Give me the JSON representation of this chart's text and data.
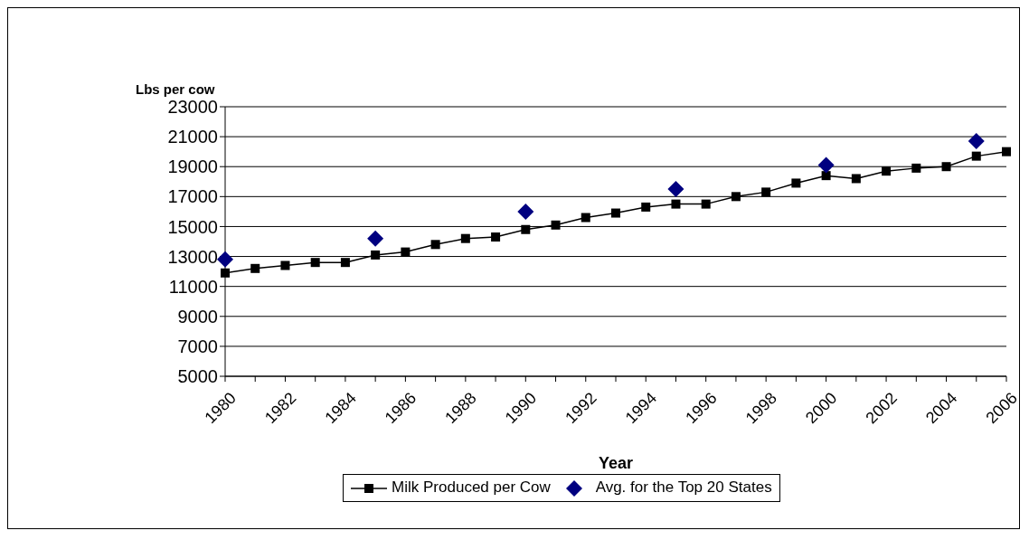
{
  "chart_data": {
    "type": "line",
    "xlabel": "Year",
    "ylabel": "Lbs per cow",
    "categories": [
      "1980",
      null,
      "1982",
      null,
      "1984",
      null,
      "1986",
      null,
      "1988",
      null,
      "1990",
      null,
      "1992",
      null,
      "1994",
      null,
      "1996",
      null,
      "1998",
      null,
      "2000",
      null,
      "2002",
      null,
      "2004",
      null,
      "2006"
    ],
    "series": [
      {
        "name": "Milk Produced per Cow",
        "color": "#000000",
        "marker": "square",
        "values": [
          11900,
          12200,
          12400,
          12600,
          12600,
          13100,
          13300,
          13800,
          14200,
          14300,
          14800,
          15100,
          15600,
          15900,
          16300,
          16500,
          16500,
          17000,
          17300,
          17900,
          18400,
          18200,
          18700,
          18900,
          19000,
          19700,
          20000
        ]
      },
      {
        "name": "Avg. for the Top 20 States",
        "type": "scatter",
        "color": "#000080",
        "marker": "diamond",
        "values": [
          12800,
          null,
          null,
          null,
          null,
          14200,
          null,
          null,
          null,
          null,
          16000,
          null,
          null,
          null,
          null,
          17500,
          null,
          null,
          null,
          null,
          19100,
          null,
          null,
          null,
          null,
          20700,
          null
        ]
      }
    ],
    "ylim": [
      5000,
      23000
    ],
    "yticks": [
      5000,
      7000,
      9000,
      11000,
      13000,
      15000,
      17000,
      19000,
      21000,
      23000
    ],
    "grid": "y",
    "legend": "bottom",
    "line_style": "solid"
  }
}
